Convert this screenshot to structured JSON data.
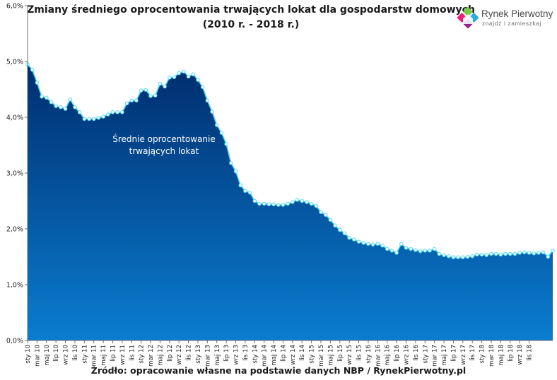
{
  "title_lines": [
    "Zmiany średniego oprocentowania trwających lokat dla gospodarstw domowych",
    "(2010 r. - 2018 r.)"
  ],
  "logo": {
    "name": "Rynek Pierwotny",
    "tagline": "znajdź i zamieszkaj",
    "colors": [
      "#7ac943",
      "#29abe2",
      "#ec1e79",
      "#93278f"
    ]
  },
  "source": "Źródło: opracowanie własne na podstawie danych NBP / RynekPierwotny.pl",
  "chart_data": {
    "type": "area",
    "annotation": [
      "Średnie oprocentowanie",
      "trwających lokat"
    ],
    "ylim": [
      0,
      6
    ],
    "y_ticks": [
      "0,0%",
      "1,0%",
      "2,0%",
      "3,0%",
      "4,0%",
      "5,0%",
      "6,0%"
    ],
    "x_tick_labels": [
      "sty 10",
      "mar 10",
      "maj 10",
      "lip 10",
      "wrz 10",
      "lis 10",
      "sty 11",
      "mar 11",
      "maj 11",
      "lip 11",
      "wrz 11",
      "lis 11",
      "sty 12",
      "mar 12",
      "maj 12",
      "lip 12",
      "wrz 12",
      "lis 12",
      "sty 13",
      "mar 13",
      "maj 13",
      "lip 13",
      "wrz 13",
      "lis 13",
      "sty 14",
      "mar 14",
      "maj 14",
      "lip 14",
      "wrz 14",
      "lis 14",
      "sty 15",
      "mar 15",
      "maj 15",
      "lip 15",
      "wrz 15",
      "lis 15",
      "sty 16",
      "mar 16",
      "maj 16",
      "lip 16",
      "wrz 16",
      "lis 16",
      "sty 17",
      "mar 17",
      "maj 17",
      "lip 17",
      "wrz 17",
      "lis 17",
      "sty 18",
      "mar 18",
      "maj 18",
      "lip 18",
      "wrz 18",
      "lis 18"
    ],
    "values": [
      4.95,
      4.85,
      4.62,
      4.37,
      4.35,
      4.27,
      4.2,
      4.18,
      4.15,
      4.32,
      4.18,
      4.09,
      3.97,
      3.97,
      3.97,
      3.99,
      4.01,
      4.05,
      4.09,
      4.09,
      4.09,
      4.25,
      4.3,
      4.3,
      4.48,
      4.49,
      4.38,
      4.39,
      4.6,
      4.55,
      4.71,
      4.72,
      4.79,
      4.82,
      4.73,
      4.77,
      4.67,
      4.54,
      4.3,
      4.1,
      3.86,
      3.72,
      3.52,
      3.18,
      3.03,
      2.78,
      2.68,
      2.65,
      2.5,
      2.45,
      2.45,
      2.44,
      2.44,
      2.43,
      2.43,
      2.45,
      2.48,
      2.52,
      2.5,
      2.48,
      2.45,
      2.41,
      2.3,
      2.25,
      2.16,
      2.06,
      1.98,
      1.92,
      1.84,
      1.81,
      1.77,
      1.75,
      1.73,
      1.72,
      1.73,
      1.7,
      1.64,
      1.61,
      1.57,
      1.73,
      1.66,
      1.64,
      1.62,
      1.6,
      1.61,
      1.61,
      1.64,
      1.55,
      1.53,
      1.51,
      1.49,
      1.49,
      1.49,
      1.5,
      1.51,
      1.54,
      1.54,
      1.53,
      1.55,
      1.55,
      1.54,
      1.55,
      1.55,
      1.55,
      1.57,
      1.58,
      1.57,
      1.56,
      1.57,
      1.58,
      1.5,
      1.61
    ],
    "fill_colors": [
      "#002d6e",
      "#0a7dd0"
    ],
    "line_color": "#4fd8f6",
    "marker_fill": "#eafcff",
    "gridlines": false
  }
}
